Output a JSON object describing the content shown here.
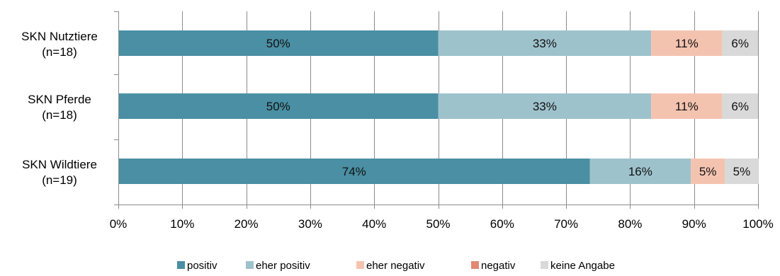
{
  "chart_data": {
    "type": "bar",
    "orientation": "horizontal",
    "stacked": true,
    "title": "",
    "xlabel": "",
    "ylabel": "",
    "xlim": [
      0,
      100
    ],
    "x_ticks": [
      "0%",
      "10%",
      "20%",
      "30%",
      "40%",
      "50%",
      "60%",
      "70%",
      "80%",
      "90%",
      "100%"
    ],
    "grid": "vertical",
    "legend_position": "bottom",
    "categories": [
      [
        "SKN Nutztiere",
        "(n=18)"
      ],
      [
        "SKN Pferde",
        "(n=18)"
      ],
      [
        "SKN Wildtiere",
        "(n=19)"
      ]
    ],
    "series": [
      {
        "name": "positiv",
        "color": "#4a8fa3",
        "values": [
          50,
          50,
          73.7
        ],
        "labels": [
          "50%",
          "50%",
          "74%"
        ]
      },
      {
        "name": "eher positiv",
        "color": "#9ec2cc",
        "values": [
          33.3,
          33.3,
          15.8
        ],
        "labels": [
          "33%",
          "33%",
          "16%"
        ]
      },
      {
        "name": "eher negativ",
        "color": "#f4c3b0",
        "values": [
          11.1,
          11.1,
          5.3
        ],
        "labels": [
          "11%",
          "11%",
          "5%"
        ]
      },
      {
        "name": "negativ",
        "color": "#e08874",
        "values": [
          0,
          0,
          0
        ],
        "labels": [
          "",
          "",
          ""
        ]
      },
      {
        "name": "keine Angabe",
        "color": "#d9d9d9",
        "values": [
          5.6,
          5.6,
          5.3
        ],
        "labels": [
          "6%",
          "6%",
          "5%"
        ]
      }
    ]
  }
}
